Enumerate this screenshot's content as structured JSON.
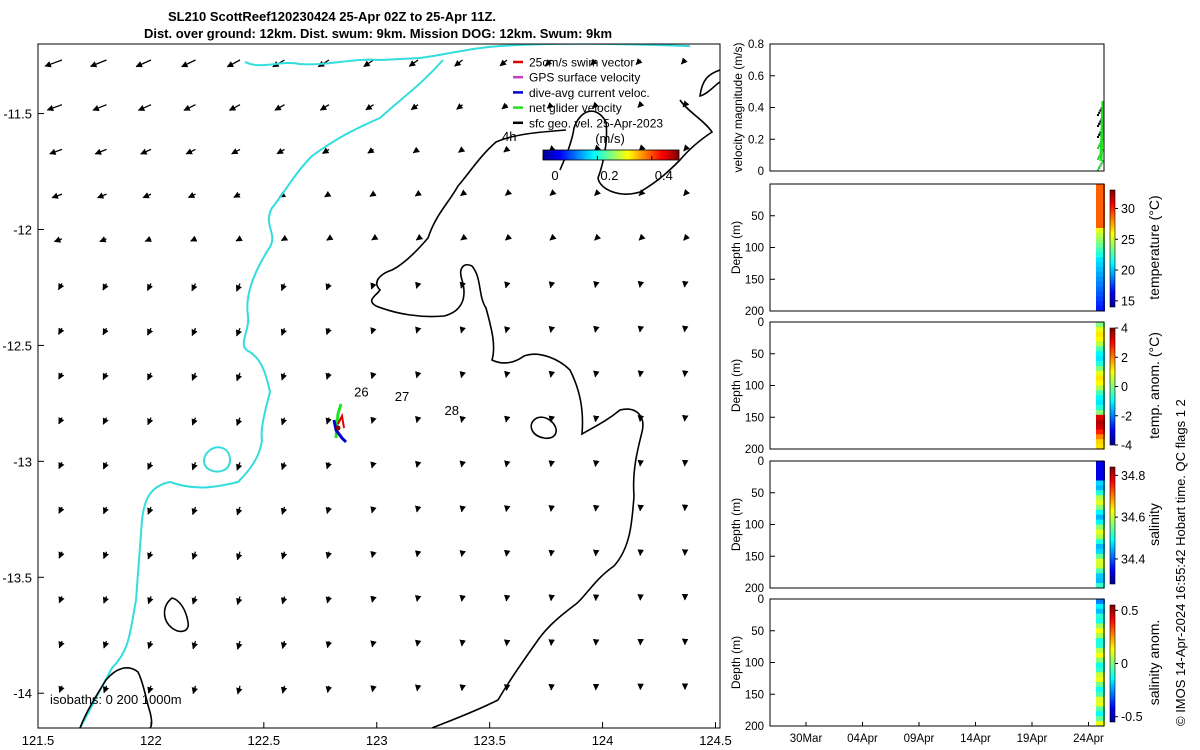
{
  "title": {
    "line1": "SL210 ScottReef120230424 25-Apr 02Z to 25-Apr 11Z.",
    "line2": "Dist. over ground: 12km. Dist. swum: 9km. Mission DOG: 12km. Swum: 9km"
  },
  "chart_data": [
    {
      "type": "scatter",
      "name": "map",
      "x_ticks": [
        "121.5",
        "122",
        "122.5",
        "123",
        "123.5",
        "124",
        "124.5"
      ],
      "y_ticks": [
        "-11.5",
        "-12",
        "-12.5",
        "-13",
        "-13.5",
        "-14"
      ],
      "xlim": [
        121.5,
        124.52
      ],
      "ylim": [
        -14.15,
        -11.2
      ],
      "legend": [
        {
          "label": "25cm/s swim vector",
          "color": "#e00000"
        },
        {
          "label": "GPS surface velocity",
          "color": "#c040c0"
        },
        {
          "label": "dive-avg current veloc.",
          "color": "#0000d0"
        },
        {
          "label": "net glider velocity",
          "color": "#20e020"
        },
        {
          "label": "sfc geo. vel. 25-Apr-2023",
          "color": "#000000"
        }
      ],
      "colorbar": {
        "title": "(m/s)",
        "ticks": [
          "0",
          "0.2",
          "0.4"
        ],
        "range": [
          0,
          0.5
        ]
      },
      "time_label": "4h",
      "day_labels": [
        {
          "text": "26",
          "lon": 122.9,
          "lat": -12.72
        },
        {
          "text": "27",
          "lon": 123.08,
          "lat": -12.74
        },
        {
          "text": "28",
          "lon": 123.3,
          "lat": -12.8
        }
      ],
      "glider_position": {
        "lon": 122.83,
        "lat": -12.82
      },
      "isobaths_label": "isobaths: 0   200  1000m"
    },
    {
      "type": "line",
      "name": "velocity",
      "ylabel": "velocity magnitude (m/s)",
      "ylim": [
        0,
        0.8
      ],
      "y_ticks": [
        "0",
        "0.2",
        "0.4",
        "0.6",
        "0.8"
      ]
    },
    {
      "type": "heatmap",
      "name": "temperature",
      "ylabel": "Depth (m)",
      "y_ticks": [
        "",
        "50",
        "100",
        "150",
        "200"
      ],
      "colorbar_label": "temperature (°C)",
      "colorbar_ticks": [
        "30",
        "25",
        "20",
        "15"
      ],
      "range": [
        14,
        33
      ]
    },
    {
      "type": "heatmap",
      "name": "temp-anom",
      "ylabel": "Depth (m)",
      "y_ticks": [
        "0",
        "50",
        "100",
        "150",
        "200"
      ],
      "colorbar_label": "temp. anom. (°C)",
      "colorbar_ticks": [
        "4",
        "2",
        "0",
        "-2",
        "-4"
      ],
      "range": [
        -4,
        4
      ]
    },
    {
      "type": "heatmap",
      "name": "salinity",
      "ylabel": "Depth (m)",
      "y_ticks": [
        "0",
        "50",
        "100",
        "150",
        "200"
      ],
      "colorbar_label": "salinity",
      "colorbar_ticks": [
        "34.8",
        "34.6",
        "34.4"
      ],
      "range": [
        34.28,
        34.84
      ]
    },
    {
      "type": "heatmap",
      "name": "salinity-anom",
      "ylabel": "Depth (m)",
      "y_ticks": [
        "0",
        "50",
        "100",
        "150",
        "200"
      ],
      "colorbar_label": "salinity anom.",
      "colorbar_ticks": [
        "0.5",
        "0",
        "-0.5"
      ],
      "range": [
        -0.55,
        0.55
      ],
      "x_ticks": [
        "30Mar",
        "04Apr",
        "09Apr",
        "14Apr",
        "19Apr",
        "24Apr"
      ]
    }
  ],
  "side_note": "© IMOS 14-Apr-2024 16:55:42 Hobart time. QC flags 1  2"
}
